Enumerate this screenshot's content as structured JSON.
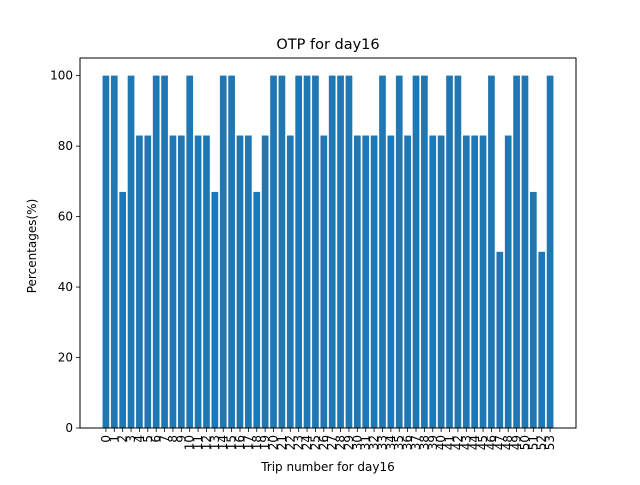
{
  "chart_data": {
    "type": "bar",
    "title": "OTP for day16",
    "xlabel": "Trip number for day16",
    "ylabel": "Percentages(%)",
    "ylim": [
      0,
      105
    ],
    "yticks": [
      0,
      20,
      40,
      60,
      80,
      100
    ],
    "bar_color": "#1f77b4",
    "categories": [
      "0",
      "1",
      "2",
      "3",
      "4",
      "5",
      "6",
      "7",
      "8",
      "9",
      "10",
      "11",
      "12",
      "13",
      "14",
      "15",
      "16",
      "17",
      "18",
      "19",
      "20",
      "21",
      "22",
      "23",
      "24",
      "25",
      "26",
      "27",
      "28",
      "29",
      "30",
      "31",
      "32",
      "33",
      "34",
      "35",
      "36",
      "37",
      "38",
      "39",
      "40",
      "41",
      "42",
      "43",
      "44",
      "45",
      "46",
      "47",
      "48",
      "49",
      "50",
      "51",
      "52",
      "53"
    ],
    "values": [
      100,
      100,
      67,
      100,
      83,
      83,
      100,
      100,
      83,
      83,
      100,
      83,
      83,
      67,
      100,
      100,
      83,
      83,
      67,
      83,
      100,
      100,
      83,
      100,
      100,
      100,
      83,
      100,
      100,
      100,
      83,
      83,
      83,
      100,
      83,
      100,
      83,
      100,
      100,
      83,
      83,
      100,
      100,
      83,
      83,
      83,
      100,
      50,
      83,
      100,
      100,
      67,
      50,
      100
    ]
  }
}
